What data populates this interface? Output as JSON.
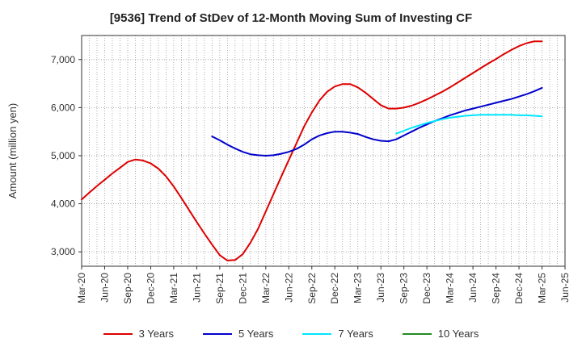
{
  "chart_data": {
    "type": "line",
    "title": "[9536]  Trend of StDev of 12-Month Moving Sum of Investing CF",
    "ylabel": "Amount (million yen)",
    "xlabel": "",
    "ylim": [
      2700,
      7500
    ],
    "yticks": [
      3000,
      4000,
      5000,
      6000,
      7000
    ],
    "ytick_labels": [
      "3,000",
      "4,000",
      "5,000",
      "6,000",
      "7,000"
    ],
    "xlim": [
      "2020-03",
      "2025-06"
    ],
    "xtick_labels": [
      "Mar-20",
      "Jun-20",
      "Sep-20",
      "Dec-20",
      "Mar-21",
      "Jun-21",
      "Sep-21",
      "Dec-21",
      "Mar-22",
      "Jun-22",
      "Sep-22",
      "Dec-22",
      "Mar-23",
      "Jun-23",
      "Sep-23",
      "Dec-23",
      "Mar-24",
      "Jun-24",
      "Sep-24",
      "Dec-24",
      "Mar-25",
      "Jun-25"
    ],
    "grid": true,
    "legend_position": "bottom",
    "series": [
      {
        "name": "3 Years",
        "color": "#dd0000",
        "points": [
          [
            "2020-03",
            4090
          ],
          [
            "2020-04",
            4230
          ],
          [
            "2020-05",
            4370
          ],
          [
            "2020-06",
            4500
          ],
          [
            "2020-07",
            4630
          ],
          [
            "2020-08",
            4750
          ],
          [
            "2020-09",
            4870
          ],
          [
            "2020-10",
            4920
          ],
          [
            "2020-11",
            4900
          ],
          [
            "2020-12",
            4840
          ],
          [
            "2021-01",
            4730
          ],
          [
            "2021-02",
            4570
          ],
          [
            "2021-03",
            4360
          ],
          [
            "2021-04",
            4120
          ],
          [
            "2021-05",
            3870
          ],
          [
            "2021-06",
            3620
          ],
          [
            "2021-07",
            3380
          ],
          [
            "2021-08",
            3150
          ],
          [
            "2021-09",
            2930
          ],
          [
            "2021-10",
            2820
          ],
          [
            "2021-11",
            2830
          ],
          [
            "2021-12",
            2950
          ],
          [
            "2022-01",
            3190
          ],
          [
            "2022-02",
            3480
          ],
          [
            "2022-03",
            3840
          ],
          [
            "2022-04",
            4200
          ],
          [
            "2022-05",
            4560
          ],
          [
            "2022-06",
            4910
          ],
          [
            "2022-07",
            5260
          ],
          [
            "2022-08",
            5610
          ],
          [
            "2022-09",
            5900
          ],
          [
            "2022-10",
            6150
          ],
          [
            "2022-11",
            6330
          ],
          [
            "2022-12",
            6440
          ],
          [
            "2023-01",
            6490
          ],
          [
            "2023-02",
            6490
          ],
          [
            "2023-03",
            6420
          ],
          [
            "2023-04",
            6310
          ],
          [
            "2023-05",
            6180
          ],
          [
            "2023-06",
            6050
          ],
          [
            "2023-07",
            5980
          ],
          [
            "2023-08",
            5980
          ],
          [
            "2023-09",
            6000
          ],
          [
            "2023-10",
            6040
          ],
          [
            "2023-11",
            6100
          ],
          [
            "2023-12",
            6170
          ],
          [
            "2024-01",
            6250
          ],
          [
            "2024-02",
            6330
          ],
          [
            "2024-03",
            6420
          ],
          [
            "2024-04",
            6520
          ],
          [
            "2024-05",
            6620
          ],
          [
            "2024-06",
            6720
          ],
          [
            "2024-07",
            6820
          ],
          [
            "2024-08",
            6920
          ],
          [
            "2024-09",
            7010
          ],
          [
            "2024-10",
            7110
          ],
          [
            "2024-11",
            7200
          ],
          [
            "2024-12",
            7280
          ],
          [
            "2025-01",
            7340
          ],
          [
            "2025-02",
            7380
          ],
          [
            "2025-03",
            7380
          ]
        ]
      },
      {
        "name": "5 Years",
        "color": "#0000cc",
        "points": [
          [
            "2021-08",
            5400
          ],
          [
            "2021-09",
            5320
          ],
          [
            "2021-10",
            5230
          ],
          [
            "2021-11",
            5150
          ],
          [
            "2021-12",
            5080
          ],
          [
            "2022-01",
            5030
          ],
          [
            "2022-02",
            5010
          ],
          [
            "2022-03",
            5000
          ],
          [
            "2022-04",
            5010
          ],
          [
            "2022-05",
            5040
          ],
          [
            "2022-06",
            5080
          ],
          [
            "2022-07",
            5140
          ],
          [
            "2022-08",
            5230
          ],
          [
            "2022-09",
            5340
          ],
          [
            "2022-10",
            5420
          ],
          [
            "2022-11",
            5470
          ],
          [
            "2022-12",
            5500
          ],
          [
            "2023-01",
            5500
          ],
          [
            "2023-02",
            5480
          ],
          [
            "2023-03",
            5450
          ],
          [
            "2023-04",
            5390
          ],
          [
            "2023-05",
            5340
          ],
          [
            "2023-06",
            5310
          ],
          [
            "2023-07",
            5300
          ],
          [
            "2023-08",
            5340
          ],
          [
            "2023-09",
            5420
          ],
          [
            "2023-10",
            5500
          ],
          [
            "2023-11",
            5580
          ],
          [
            "2023-12",
            5650
          ],
          [
            "2024-01",
            5720
          ],
          [
            "2024-02",
            5780
          ],
          [
            "2024-03",
            5840
          ],
          [
            "2024-04",
            5890
          ],
          [
            "2024-05",
            5940
          ],
          [
            "2024-06",
            5980
          ],
          [
            "2024-07",
            6020
          ],
          [
            "2024-08",
            6060
          ],
          [
            "2024-09",
            6100
          ],
          [
            "2024-10",
            6140
          ],
          [
            "2024-11",
            6180
          ],
          [
            "2024-12",
            6230
          ],
          [
            "2025-01",
            6280
          ],
          [
            "2025-02",
            6340
          ],
          [
            "2025-03",
            6410
          ]
        ]
      },
      {
        "name": "7 Years",
        "color": "#00e5ff",
        "points": [
          [
            "2023-08",
            5460
          ],
          [
            "2023-09",
            5520
          ],
          [
            "2023-10",
            5580
          ],
          [
            "2023-11",
            5630
          ],
          [
            "2023-12",
            5680
          ],
          [
            "2024-01",
            5720
          ],
          [
            "2024-02",
            5760
          ],
          [
            "2024-03",
            5790
          ],
          [
            "2024-04",
            5810
          ],
          [
            "2024-05",
            5830
          ],
          [
            "2024-06",
            5840
          ],
          [
            "2024-07",
            5850
          ],
          [
            "2024-08",
            5850
          ],
          [
            "2024-09",
            5850
          ],
          [
            "2024-10",
            5850
          ],
          [
            "2024-11",
            5850
          ],
          [
            "2024-12",
            5840
          ],
          [
            "2025-01",
            5840
          ],
          [
            "2025-02",
            5830
          ],
          [
            "2025-03",
            5820
          ]
        ]
      },
      {
        "name": "10 Years",
        "color": "#228B22",
        "points": []
      }
    ]
  }
}
